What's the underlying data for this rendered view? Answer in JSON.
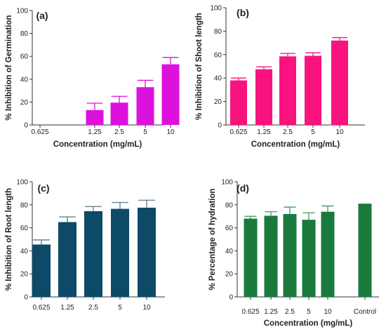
{
  "chart_data": [
    {
      "id": "a",
      "type": "bar",
      "panel_label": "(a)",
      "xlabel": "Concentration (mg/mL)",
      "ylabel": "% Inhibition of Germination",
      "categories": [
        "0.625",
        "1.25",
        "2.5",
        "5",
        "10"
      ],
      "values": [
        0,
        13,
        19.5,
        33,
        53
      ],
      "errors": [
        0,
        6,
        5.5,
        6,
        6
      ],
      "ylim": [
        0,
        100
      ],
      "yticks": [
        0,
        20,
        40,
        60,
        80,
        100
      ],
      "bar_color": "#dd11dd",
      "error_color": "#dd11dd"
    },
    {
      "id": "b",
      "type": "bar",
      "panel_label": "(b)",
      "xlabel": "Concentration (mg/mL)",
      "ylabel": "% Inhibition of Shoot length",
      "categories": [
        "0.625",
        "1.25",
        "2.5",
        "5",
        "10"
      ],
      "values": [
        38,
        47.5,
        58.5,
        59,
        72
      ],
      "errors": [
        2,
        2,
        2.5,
        2.5,
        2.5
      ],
      "ylim": [
        0,
        100
      ],
      "yticks": [
        0,
        20,
        40,
        60,
        80,
        100
      ],
      "bar_color": "#f8137e",
      "error_color": "#f8137e"
    },
    {
      "id": "c",
      "type": "bar",
      "panel_label": "(c)",
      "xlabel": "",
      "ylabel": "% Inhibition of Root length",
      "categories": [
        "0.625",
        "1.25",
        "2.5",
        "5",
        "10"
      ],
      "values": [
        45.5,
        65,
        74.5,
        76.5,
        77.5
      ],
      "errors": [
        4,
        4.5,
        4,
        5.5,
        6.5
      ],
      "ylim": [
        0,
        100
      ],
      "yticks": [
        0,
        20,
        40,
        60,
        80,
        100
      ],
      "bar_color": "#0d4a68",
      "error_color": "#5a7b8c"
    },
    {
      "id": "d",
      "type": "bar",
      "panel_label": "(d)",
      "xlabel": "Concentration (mg/mL)",
      "ylabel": "% Percentage of hydration",
      "categories": [
        "0.625",
        "1.25",
        "2.5",
        "5",
        "10",
        "Control"
      ],
      "values": [
        68,
        70.5,
        72,
        67,
        74,
        81
      ],
      "errors": [
        2,
        3.5,
        6,
        6,
        5,
        0
      ],
      "ylim": [
        0,
        100
      ],
      "yticks": [
        0,
        20,
        40,
        60,
        80,
        100
      ],
      "bar_color": "#1a7a3e",
      "error_color": "#3e9a62"
    }
  ]
}
